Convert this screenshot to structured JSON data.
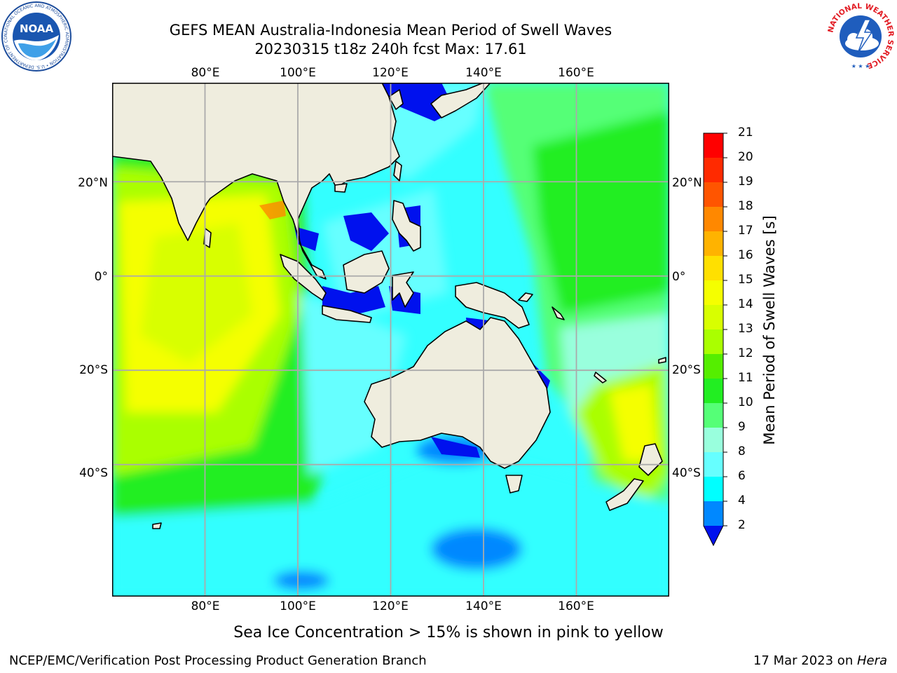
{
  "title": {
    "line1": "GEFS MEAN Australia-Indonesia Mean Period of Swell Waves",
    "line2": "20230315 t18z 240h fcst   Max: 17.61"
  },
  "map": {
    "lon_range": [
      60,
      180
    ],
    "lat_range": [
      -68,
      41
    ],
    "grid": true,
    "lon_gridlines": [
      80,
      100,
      120,
      140,
      160
    ],
    "lat_gridlines": [
      20,
      0,
      -20,
      -40
    ],
    "lon_tick_labels": [
      "80°E",
      "100°E",
      "120°E",
      "140°E",
      "160°E"
    ],
    "lat_tick_labels": [
      "20°N",
      "0°",
      "20°S",
      "40°S"
    ],
    "land_color": "#efedde",
    "ocean_base_color": "#33ffff"
  },
  "colorbar": {
    "label": "Mean Period of Swell Waves [s]",
    "ticks": [
      "21",
      "20",
      "19",
      "18",
      "17",
      "16",
      "15",
      "14",
      "13",
      "12",
      "11",
      "10",
      "9",
      "8",
      "6",
      "4",
      "2"
    ],
    "bins": [
      {
        "min": 20,
        "max": 21,
        "color": "#ff0000"
      },
      {
        "min": 19,
        "max": 20,
        "color": "#ff2a00"
      },
      {
        "min": 18,
        "max": 19,
        "color": "#ff5500"
      },
      {
        "min": 17,
        "max": 18,
        "color": "#ff8800"
      },
      {
        "min": 16,
        "max": 17,
        "color": "#ffb300"
      },
      {
        "min": 15,
        "max": 16,
        "color": "#ffe000"
      },
      {
        "min": 14,
        "max": 15,
        "color": "#f5ff00"
      },
      {
        "min": 13,
        "max": 14,
        "color": "#d8ff00"
      },
      {
        "min": 12,
        "max": 13,
        "color": "#aaff00"
      },
      {
        "min": 11,
        "max": 12,
        "color": "#55ee00"
      },
      {
        "min": 10,
        "max": 11,
        "color": "#22ee22"
      },
      {
        "min": 9,
        "max": 10,
        "color": "#55ff77"
      },
      {
        "min": 8,
        "max": 9,
        "color": "#99ffdd"
      },
      {
        "min": 6,
        "max": 8,
        "color": "#66ffff"
      },
      {
        "min": 4,
        "max": 6,
        "color": "#00ffff"
      },
      {
        "min": 2,
        "max": 4,
        "color": "#0088ff"
      },
      {
        "min": 0,
        "max": 2,
        "color": "#0011ee"
      }
    ],
    "extend": "min"
  },
  "bottom_note": "Sea Ice Concentration > 15% is shown in pink to yellow",
  "footer": {
    "left": "NCEP/EMC/Verification Post Processing Product Generation Branch",
    "right_prefix": "17 Mar 2023 on ",
    "right_host": "Hera"
  },
  "logos": {
    "noaa": {
      "text": "NOAA",
      "ring_text": "NATIONAL OCEANIC AND ATMOSPHERIC ADMINISTRATION • U.S. DEPARTMENT OF COMMERCE"
    },
    "nws": {
      "ring_text": "NATIONAL WEATHER SERVICE"
    }
  }
}
